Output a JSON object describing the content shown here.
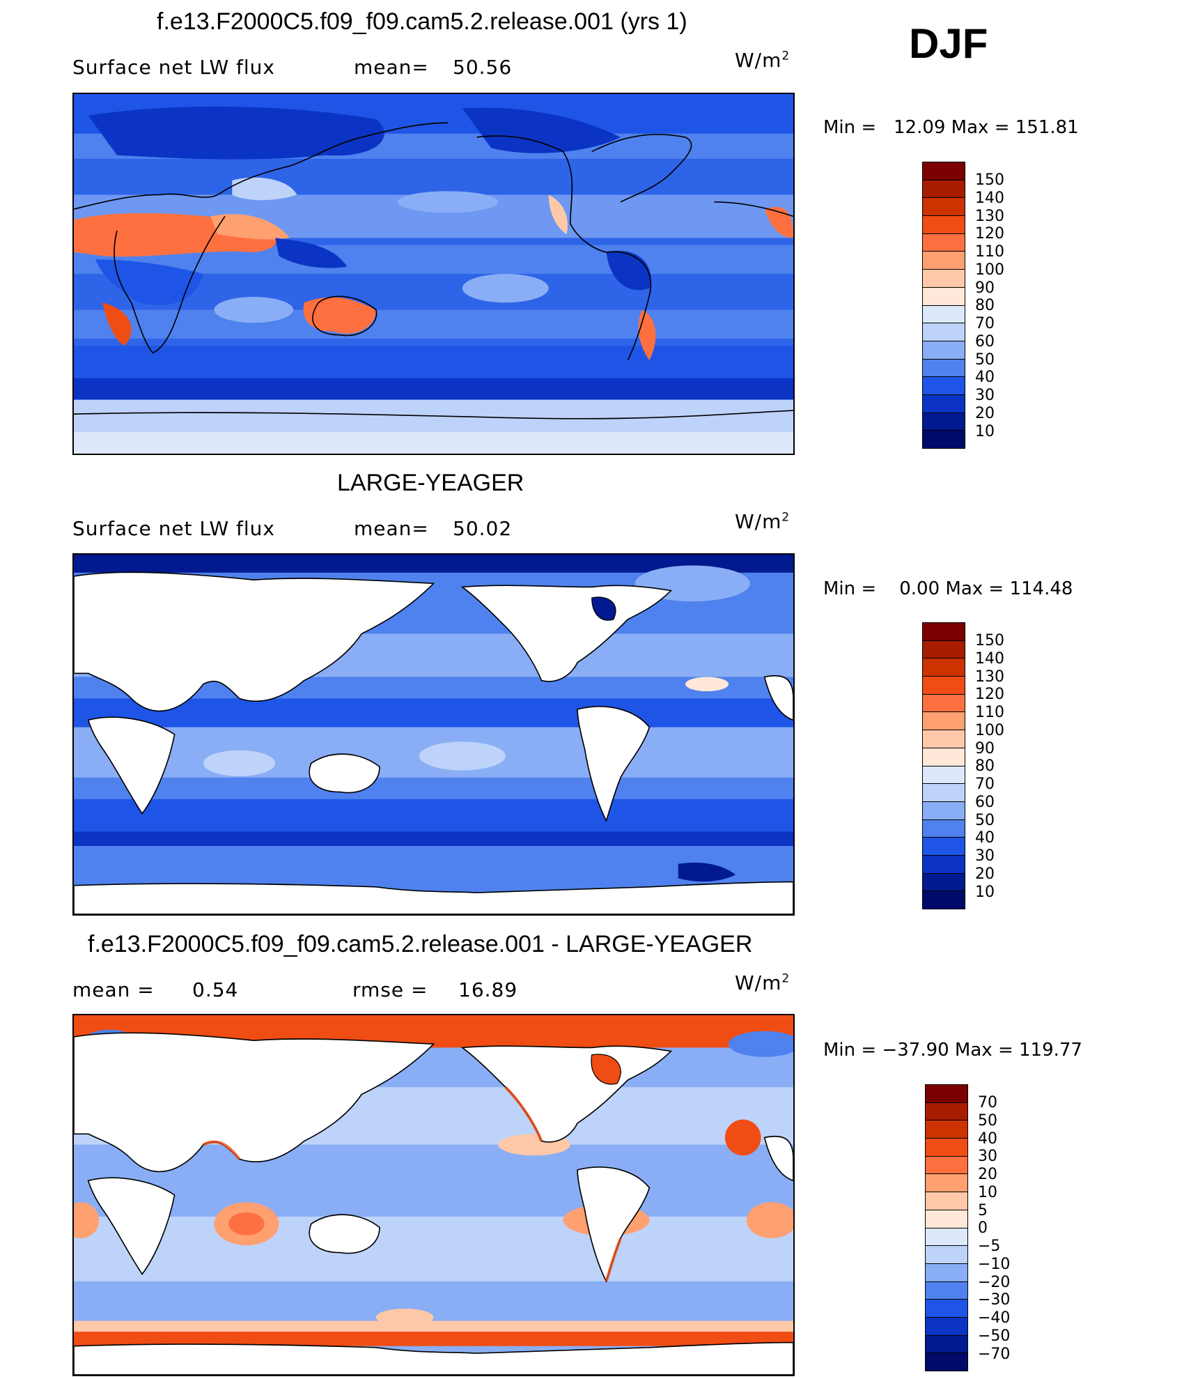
{
  "season": "DJF",
  "panels": [
    {
      "title": "f.e13.F2000C5.f09_f09.cam5.2.release.001 (yrs 1)",
      "left_label": "Surface net LW flux",
      "mean_label": "mean=",
      "mean_value": "50.56",
      "rmse_label": "",
      "rmse_value": "",
      "unit": "W/m",
      "unit_exp": "2",
      "minmax": "Min =   12.09 Max = 151.81",
      "colorbar_labels": [
        "150",
        "140",
        "130",
        "120",
        "110",
        "100",
        "90",
        "80",
        "70",
        "60",
        "50",
        "40",
        "30",
        "20",
        "10"
      ]
    },
    {
      "title": "LARGE-YEAGER",
      "left_label": "Surface net LW flux",
      "mean_label": "mean=",
      "mean_value": "50.02",
      "rmse_label": "",
      "rmse_value": "",
      "unit": "W/m",
      "unit_exp": "2",
      "minmax": "Min =    0.00 Max = 114.48",
      "colorbar_labels": [
        "150",
        "140",
        "130",
        "120",
        "110",
        "100",
        "90",
        "80",
        "70",
        "60",
        "50",
        "40",
        "30",
        "20",
        "10"
      ]
    },
    {
      "title": "f.e13.F2000C5.f09_f09.cam5.2.release.001 - LARGE-YEAGER",
      "left_label": "mean =",
      "mean_label": "",
      "mean_value": "0.54",
      "rmse_label": "rmse =",
      "rmse_value": "16.89",
      "unit": "W/m",
      "unit_exp": "2",
      "minmax": "Min = −37.90 Max = 119.77",
      "colorbar_labels": [
        "70",
        "50",
        "40",
        "30",
        "20",
        "10",
        "5",
        "0",
        "−5",
        "−10",
        "−20",
        "−30",
        "−40",
        "−50",
        "−70"
      ]
    }
  ],
  "colors": {
    "abs_scale": [
      "#7a0000",
      "#a81c00",
      "#cc3300",
      "#f04d14",
      "#ff7040",
      "#ffa070",
      "#ffc8a8",
      "#ffe8d8",
      "#dde8fa",
      "#bed3fa",
      "#8aaef5",
      "#4f82ee",
      "#1f55e6",
      "#0b34c4",
      "#021a8f",
      "#000a6a"
    ],
    "diff_scale": [
      "#7a0000",
      "#a81c00",
      "#cc3300",
      "#f04d14",
      "#ff7040",
      "#ffa070",
      "#ffc8a8",
      "#ffe8d8",
      "#dde8fa",
      "#bed3fa",
      "#8aaef5",
      "#4f82ee",
      "#1f55e6",
      "#0b34c4",
      "#021a8f",
      "#000a6a"
    ]
  }
}
